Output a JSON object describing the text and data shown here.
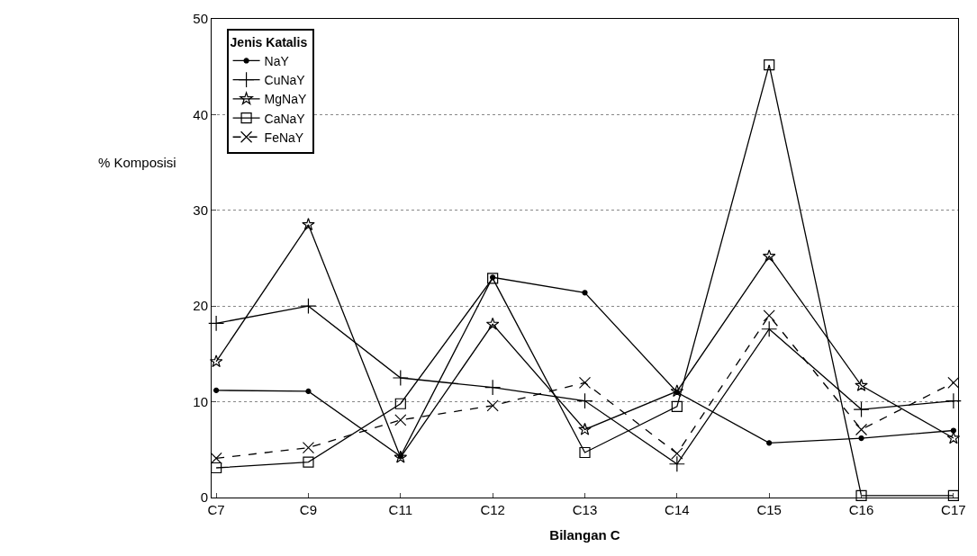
{
  "chart_data": {
    "type": "line",
    "xlabel": "Bilangan C",
    "ylabel": "% Komposisi",
    "legend_title": "Jenis Katalis",
    "categories": [
      "C7",
      "C9",
      "C11",
      "C12",
      "C13",
      "C14",
      "C15",
      "C16",
      "C17"
    ],
    "series": [
      {
        "name": "NaY",
        "color": "#000000",
        "marker": "circle",
        "values": [
          11.2,
          11.1,
          4.3,
          23,
          21.4,
          11,
          5.7,
          6.2,
          7
        ]
      },
      {
        "name": "CuNaY",
        "color": "#000000",
        "marker": "plus",
        "values": [
          18.2,
          20,
          12.5,
          11.5,
          10.1,
          3.5,
          17.6,
          9.2,
          10.1
        ]
      },
      {
        "name": "MgNaY",
        "color": "#000000",
        "marker": "star",
        "values": [
          14.2,
          28.5,
          4.2,
          18.1,
          7.1,
          11.1,
          25.2,
          11.7,
          6.2
        ]
      },
      {
        "name": "CaNaY",
        "color": "#000000",
        "marker": "square",
        "values": [
          3.1,
          3.7,
          9.8,
          22.9,
          4.7,
          9.5,
          45.2,
          0.2,
          0.2
        ]
      },
      {
        "name": "FeNaY",
        "color": "#000000",
        "marker": "cross",
        "line_style": "dashed",
        "values": [
          4.1,
          5.2,
          8.1,
          9.6,
          12,
          4.6,
          19,
          7.1,
          12
        ]
      }
    ],
    "ylim": [
      0,
      50
    ],
    "yticks": [
      0,
      10,
      20,
      30,
      40,
      50
    ],
    "grid": "y",
    "legend": "top left"
  }
}
